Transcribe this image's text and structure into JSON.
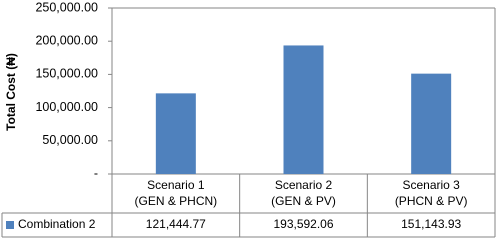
{
  "chart_data": {
    "type": "bar",
    "y_label": "Total Cost (₦)",
    "categories": [
      [
        "Scenario 1",
        "(GEN & PHCN)"
      ],
      [
        "Scenario 2",
        "(GEN & PV)"
      ],
      [
        "Scenario 3",
        "(PHCN & PV)"
      ]
    ],
    "series": [
      {
        "name": "Combination 2",
        "color": "#4f81bd",
        "values": [
          121444.77,
          193592.06,
          151143.93
        ],
        "value_labels": [
          "121,444.77",
          "193,592.06",
          "151,143.93"
        ]
      }
    ],
    "ylim": [
      0,
      250000
    ],
    "yticks": [
      {
        "value": 0,
        "label": "-"
      },
      {
        "value": 50000,
        "label": "50,000.00"
      },
      {
        "value": 100000,
        "label": "100,000.00"
      },
      {
        "value": 150000,
        "label": "150,000.00"
      },
      {
        "value": 200000,
        "label": "200,000.00"
      },
      {
        "value": 250000,
        "label": "250,000.00"
      }
    ],
    "grid": false
  }
}
